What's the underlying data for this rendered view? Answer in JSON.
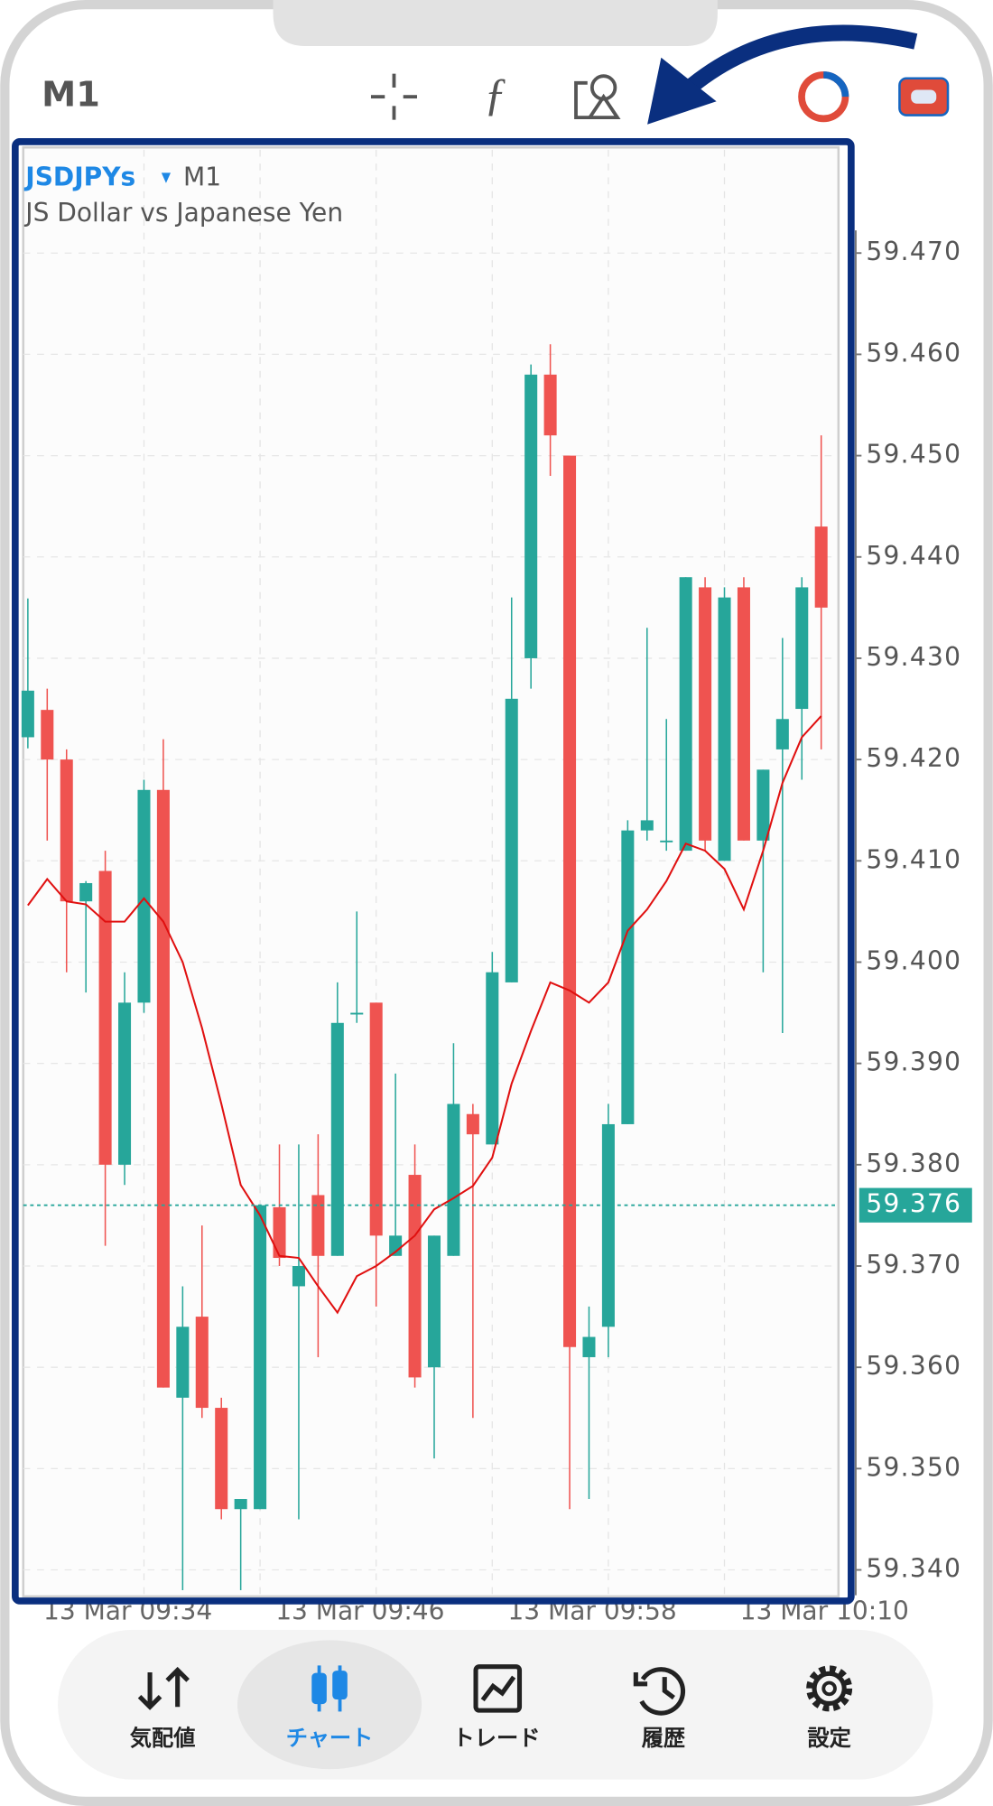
{
  "header": {
    "timeframe": "M1"
  },
  "chart_data": {
    "type": "candlestick",
    "symbol": "JSDJPYs",
    "timeframe": "M1",
    "subtitle": "JS Dollar vs Japanese Yen",
    "up_color": "#26a69a",
    "down_color": "#ef5350",
    "open": [
      59.4222,
      59.4249,
      59.42,
      59.406,
      59.409,
      59.38,
      59.396,
      59.417,
      59.357,
      59.365,
      59.356,
      59.346,
      59.346,
      59.3758,
      59.368,
      59.377,
      59.371,
      59.395,
      59.396,
      59.371,
      59.379,
      59.36,
      59.371,
      59.385,
      59.382,
      59.398,
      59.43,
      59.458,
      59.45,
      59.361,
      59.364,
      59.384,
      59.413,
      59.412,
      59.411,
      59.437,
      59.41,
      59.437,
      59.412,
      59.421,
      59.425,
      59.443
    ],
    "high": [
      59.4359,
      59.427,
      59.421,
      59.408,
      59.411,
      59.399,
      59.418,
      59.422,
      59.368,
      59.374,
      59.357,
      59.347,
      59.376,
      59.382,
      59.382,
      59.383,
      59.398,
      59.405,
      59.396,
      59.389,
      59.382,
      59.373,
      59.392,
      59.386,
      59.401,
      59.436,
      59.459,
      59.461,
      59.45,
      59.366,
      59.386,
      59.414,
      59.433,
      59.424,
      59.438,
      59.438,
      59.437,
      59.438,
      59.419,
      59.432,
      59.438,
      59.452
    ],
    "low": [
      59.4211,
      59.412,
      59.399,
      59.397,
      59.372,
      59.378,
      59.395,
      59.358,
      59.338,
      59.355,
      59.345,
      59.338,
      59.346,
      59.37,
      59.345,
      59.361,
      59.371,
      59.394,
      59.366,
      59.371,
      59.358,
      59.351,
      59.371,
      59.355,
      59.382,
      59.398,
      59.427,
      59.448,
      59.346,
      59.347,
      59.361,
      59.384,
      59.412,
      59.411,
      59.411,
      59.411,
      59.41,
      59.412,
      59.399,
      59.393,
      59.418,
      59.421
    ],
    "close": [
      59.4268,
      59.42,
      59.406,
      59.4078,
      59.38,
      59.396,
      59.417,
      59.358,
      59.364,
      59.356,
      59.346,
      59.347,
      59.376,
      59.3708,
      59.37,
      59.371,
      59.394,
      59.395,
      59.373,
      59.373,
      59.359,
      59.373,
      59.386,
      59.383,
      59.399,
      59.426,
      59.458,
      59.452,
      59.362,
      59.363,
      59.384,
      59.413,
      59.414,
      59.412,
      59.438,
      59.412,
      59.436,
      59.412,
      59.419,
      59.424,
      59.437,
      59.435
    ],
    "ma": {
      "color": "#e01010",
      "values": [
        59.4056,
        59.4082,
        59.406,
        59.4057,
        59.404,
        59.404,
        59.4063,
        59.404,
        59.4,
        59.3935,
        59.386,
        59.378,
        59.375,
        59.371,
        59.3708,
        59.368,
        59.3654,
        59.369,
        59.37,
        59.3714,
        59.373,
        59.3756,
        59.3767,
        59.3779,
        59.3807,
        59.388,
        59.3932,
        59.398,
        59.3972,
        59.396,
        59.398,
        59.4031,
        59.4052,
        59.408,
        59.4117,
        59.411,
        59.4092,
        59.4052,
        59.411,
        59.4177,
        59.4222,
        59.4243
      ]
    },
    "current_price": 59.376,
    "ylim": [
      59.3375,
      59.4802
    ],
    "yticks": [
      {
        "value": 59.34,
        "label": "59.340"
      },
      {
        "value": 59.35,
        "label": "59.350"
      },
      {
        "value": 59.36,
        "label": "59.360"
      },
      {
        "value": 59.37,
        "label": "59.370"
      },
      {
        "value": 59.38,
        "label": "59.380"
      },
      {
        "value": 59.39,
        "label": "59.390"
      },
      {
        "value": 59.4,
        "label": "59.400"
      },
      {
        "value": 59.41,
        "label": "59.410"
      },
      {
        "value": 59.42,
        "label": "59.420"
      },
      {
        "value": 59.43,
        "label": "59.430"
      },
      {
        "value": 59.44,
        "label": "59.440"
      },
      {
        "value": 59.45,
        "label": "59.450"
      },
      {
        "value": 59.46,
        "label": "59.460"
      },
      {
        "value": 59.47,
        "label": "59.470"
      }
    ],
    "grid": true,
    "xtick_labels": [
      "13 Mar 09:34",
      "13 Mar 09:46",
      "13 Mar 09:58",
      "13 Mar 10:10"
    ]
  },
  "nav": {
    "items": [
      "気配値",
      "チャート",
      "トレード",
      "履歴",
      "設定"
    ],
    "active": 1
  }
}
